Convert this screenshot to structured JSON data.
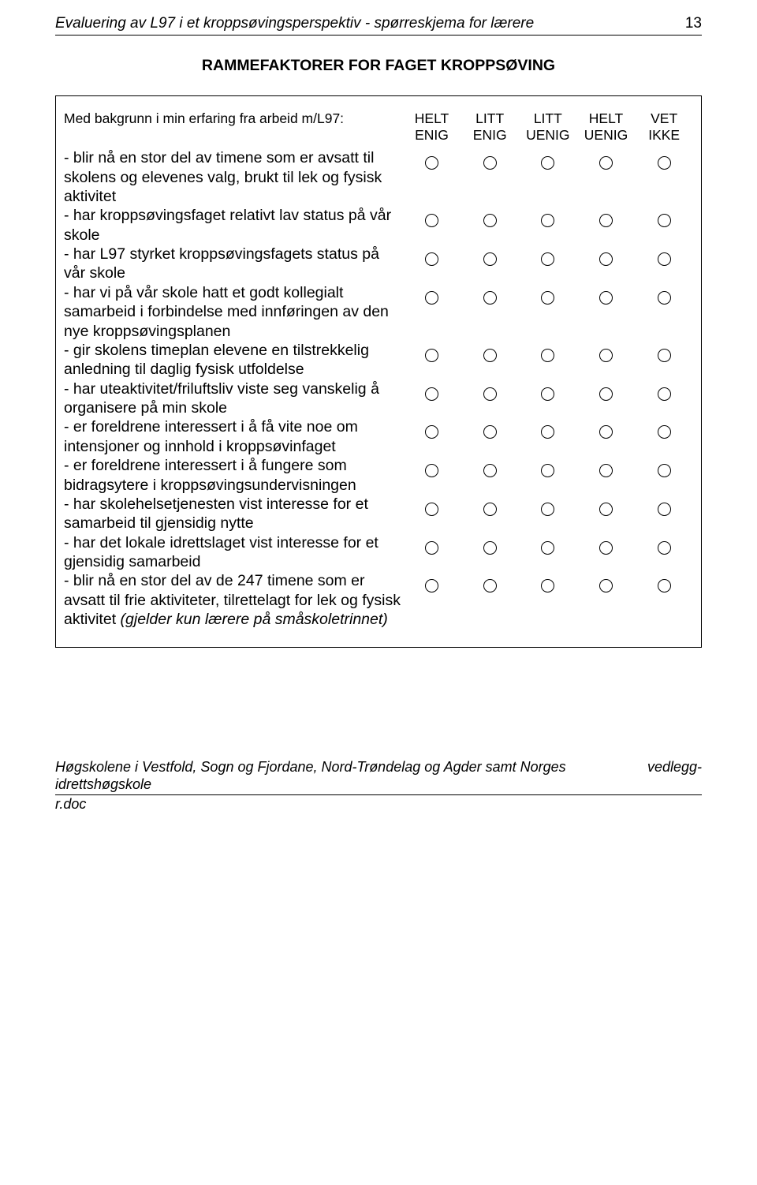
{
  "header": {
    "title": "Evaluering av L97 i et kroppsøvingsperspektiv - spørreskjema for lærere",
    "page_number": "13"
  },
  "section_title": "RAMMEFAKTORER FOR FAGET KROPPSØVING",
  "survey": {
    "intro": "Med bakgrunn i min erfaring fra arbeid m/L97:",
    "columns": [
      {
        "line1": "HELT",
        "line2": "ENIG"
      },
      {
        "line1": "LITT",
        "line2": "ENIG"
      },
      {
        "line1": "LITT",
        "line2": "UENIG"
      },
      {
        "line1": "HELT",
        "line2": "UENIG"
      },
      {
        "line1": "VET",
        "line2": "IKKE"
      }
    ],
    "items": [
      {
        "text": "- blir nå en stor del av timene som er avsatt til skolens og elevenes valg, brukt til lek og fysisk aktivitet"
      },
      {
        "text": "- har kroppsøvingsfaget relativt lav status på vår skole"
      },
      {
        "text": "- har L97 styrket kroppsøvingsfagets status på vår skole"
      },
      {
        "text": "- har vi på vår skole hatt et godt kollegialt samarbeid i forbindelse med innføringen av den nye kroppsøvingsplanen"
      },
      {
        "text": "- gir skolens timeplan elevene en tilstrekkelig anledning til daglig fysisk utfoldelse"
      },
      {
        "text": "- har uteaktivitet/friluftsliv viste seg vanskelig å organisere på min skole"
      },
      {
        "text": "- er foreldrene interessert i å få vite noe om intensjoner og innhold i kroppsøvinfaget"
      },
      {
        "text": "- er foreldrene interessert i å fungere som bidragsytere i kroppsøvingsundervisningen"
      },
      {
        "text": "- har skolehelsetjenesten vist interesse for et samarbeid til gjensidig nytte"
      },
      {
        "text": "- har det lokale idrettslaget vist interesse for et gjensidig samarbeid"
      },
      {
        "text_html": "- blir nå en stor del av de 247 timene som er avsatt til frie aktiviteter, tilrettelagt for lek og fysisk aktivitet <span class=\"italic\">(gjelder kun lærere på småskoletrinnet)</span>"
      }
    ]
  },
  "footer": {
    "left": "Høgskolene i Vestfold, Sogn og Fjordane, Nord-Trøndelag og Agder samt Norges idrettshøgskole",
    "right": "vedlegg-",
    "doc": "r.doc"
  }
}
